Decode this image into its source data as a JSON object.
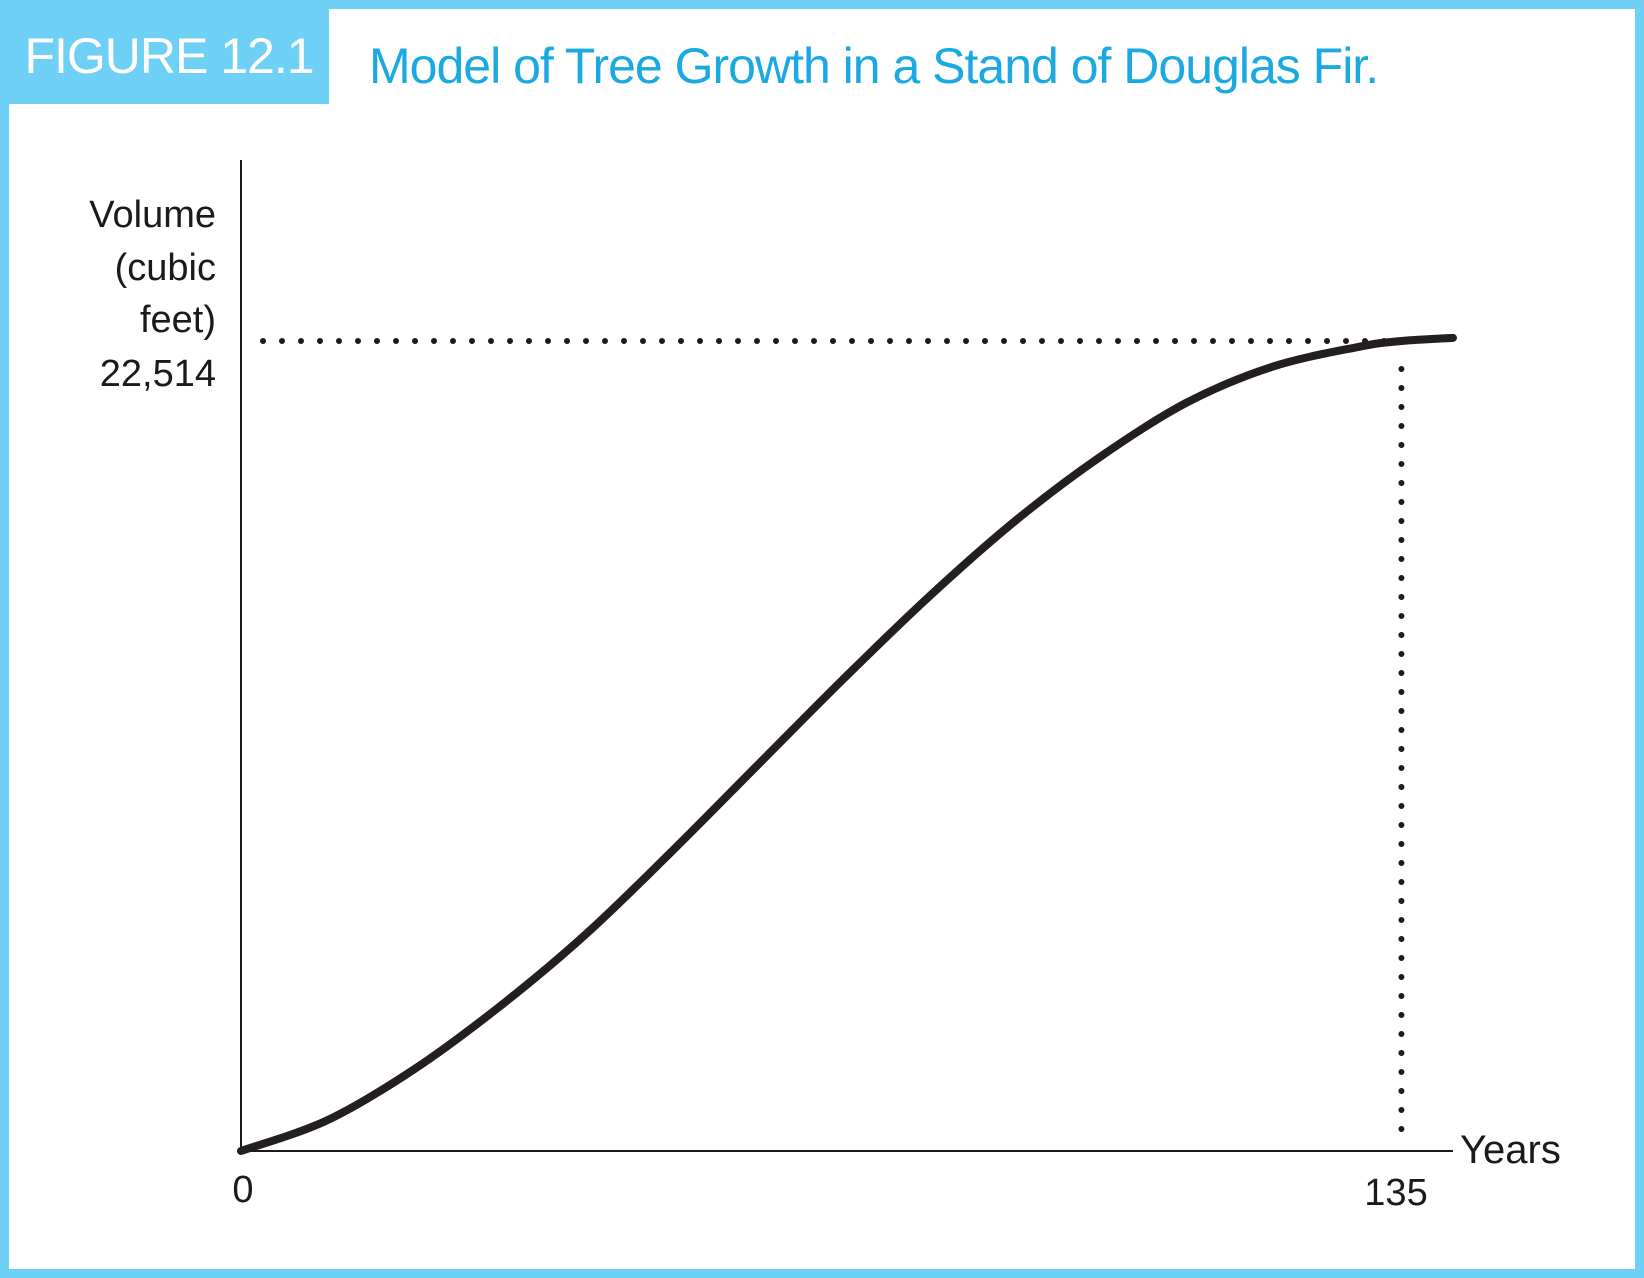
{
  "figure": {
    "label": "FIGURE 12.1",
    "title": "Model of Tree Growth in a Stand of Douglas Fir.",
    "colors": {
      "label_bg": "#6fd0f5",
      "title_text": "#1aa9e1",
      "curve": "#231f20"
    }
  },
  "chart_data": {
    "type": "line",
    "ylabel_lines": [
      "Volume",
      "(cubic",
      "feet)"
    ],
    "xlabel": "Years",
    "x_ticks": [
      "0",
      "135"
    ],
    "y_ticks": [
      "22,514"
    ],
    "xlim": [
      0,
      141
    ],
    "ylim": [
      0,
      22514
    ],
    "grid": false,
    "reference_point": {
      "x": 135,
      "y": 22514
    },
    "series": [
      {
        "x": [
          0,
          10,
          20,
          30,
          40,
          50,
          60,
          70,
          80,
          90,
          100,
          110,
          120,
          130,
          135,
          141
        ],
        "values": [
          0,
          850,
          2250,
          4000,
          6000,
          8300,
          10700,
          13100,
          15400,
          17500,
          19300,
          20800,
          21800,
          22350,
          22514,
          22600
        ]
      }
    ]
  }
}
